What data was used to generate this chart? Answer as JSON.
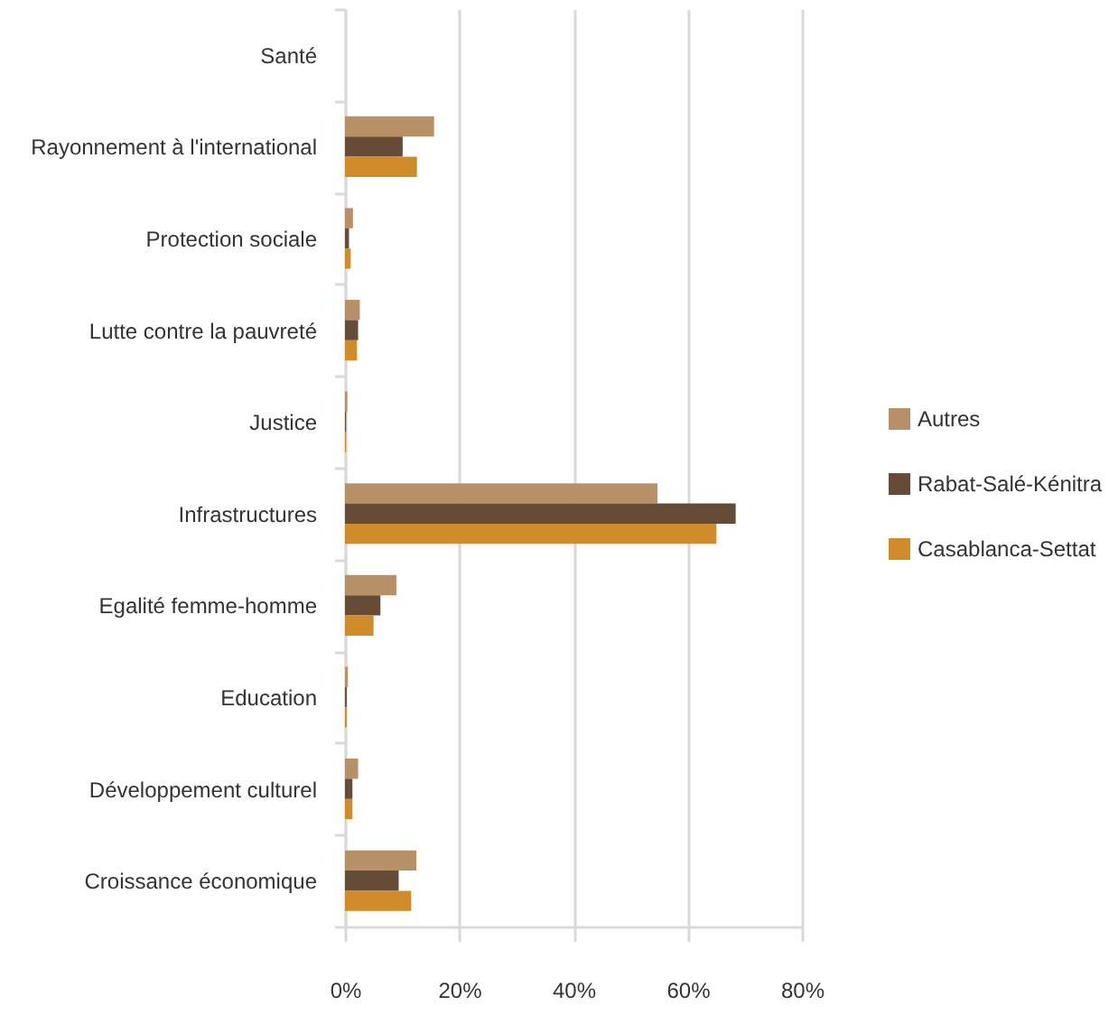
{
  "chart_data": {
    "type": "bar",
    "orientation": "horizontal",
    "categories": [
      "Santé",
      "Rayonnement à l'international",
      "Protection sociale",
      "Lutte contre la pauvreté",
      "Justice",
      "Infrastructures",
      "Egalité femme-homme",
      "Education",
      "Développement culturel",
      "Croissance économique"
    ],
    "series": [
      {
        "name": "Autres",
        "color": "#b89068",
        "values": [
          null,
          15.6,
          1.4,
          2.6,
          0.4,
          54.7,
          9.0,
          0.5,
          2.3,
          12.5
        ]
      },
      {
        "name": "Rabat-Salé-Kénitra",
        "color": "#664c37",
        "values": [
          null,
          10.1,
          0.7,
          2.3,
          0.2,
          68.4,
          6.2,
          0.3,
          1.3,
          9.4
        ]
      },
      {
        "name": "Casablanca-Settat",
        "color": "#d08b2b",
        "values": [
          null,
          12.6,
          1.0,
          2.1,
          0.2,
          65.0,
          5.0,
          0.3,
          1.3,
          11.6
        ]
      }
    ],
    "xlim": [
      0,
      80
    ],
    "xticks": [
      {
        "value": 0,
        "label": "0%"
      },
      {
        "value": 20,
        "label": "20%"
      },
      {
        "value": 40,
        "label": "40%"
      },
      {
        "value": 60,
        "label": "60%"
      },
      {
        "value": 80,
        "label": "80%"
      }
    ],
    "grid": "x",
    "legend": "right"
  }
}
